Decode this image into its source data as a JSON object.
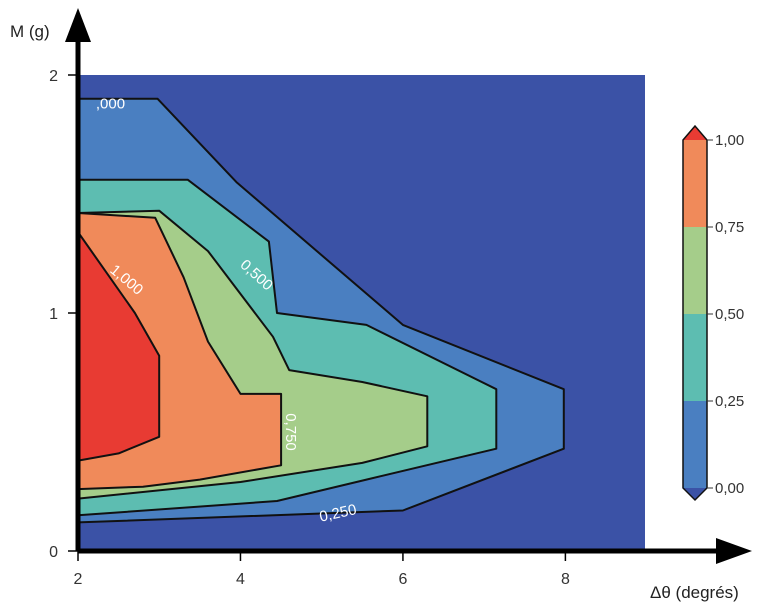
{
  "chart_data": {
    "type": "contour",
    "xlabel": "Δθ (degrés)",
    "ylabel": "M (g)",
    "xlim": [
      2,
      8.98
    ],
    "ylim": [
      0,
      2
    ],
    "x_ticks": [
      "2",
      "4",
      "6",
      "8"
    ],
    "y_ticks": [
      "0",
      "1",
      "2"
    ],
    "colorbar": {
      "range": [
        0,
        1
      ],
      "extend": "both",
      "tick_labels": [
        "0,00",
        "0,25",
        "0,50",
        "0,75",
        "1,00"
      ],
      "bins": [
        {
          "from": 0.0,
          "to": 0.25,
          "color": "#4a7fc1"
        },
        {
          "from": 0.25,
          "to": 0.5,
          "color": "#5dbdb1"
        },
        {
          "from": 0.5,
          "to": 0.75,
          "color": "#a5cd8a"
        },
        {
          "from": 0.75,
          "to": 1.0,
          "color": "#f08a5a"
        }
      ],
      "under_color": "#3b52a6",
      "over_color": "#e83b33"
    },
    "levels": [
      {
        "value": 0.0,
        "label": ",000",
        "fill": "#4a7fc1",
        "polygon": [
          [
            2,
            1.9
          ],
          [
            2.98,
            1.9
          ],
          [
            3.95,
            1.55
          ],
          [
            6.0,
            0.95
          ],
          [
            7.98,
            0.68
          ],
          [
            7.98,
            0.43
          ],
          [
            6.0,
            0.17
          ],
          [
            2,
            0.12
          ]
        ]
      },
      {
        "value": 0.25,
        "label": "0,250",
        "fill": "#5dbdb1",
        "polygon": [
          [
            2,
            1.56
          ],
          [
            3.35,
            1.56
          ],
          [
            4.35,
            1.3
          ],
          [
            4.45,
            1.0
          ],
          [
            5.55,
            0.95
          ],
          [
            7.15,
            0.68
          ],
          [
            7.15,
            0.43
          ],
          [
            5.55,
            0.3
          ],
          [
            4.45,
            0.21
          ],
          [
            2,
            0.15
          ]
        ]
      },
      {
        "value": 0.5,
        "label": "0,500",
        "fill": "#a5cd8a",
        "polygon": [
          [
            2,
            1.42
          ],
          [
            3.0,
            1.43
          ],
          [
            3.6,
            1.26
          ],
          [
            4.4,
            0.9
          ],
          [
            4.6,
            0.76
          ],
          [
            5.5,
            0.71
          ],
          [
            6.3,
            0.65
          ],
          [
            6.3,
            0.44
          ],
          [
            5.5,
            0.37
          ],
          [
            4.0,
            0.29
          ],
          [
            2,
            0.22
          ]
        ]
      },
      {
        "value": 0.75,
        "label": "0,750",
        "fill": "#f08a5a",
        "polygon": [
          [
            2,
            1.42
          ],
          [
            2.95,
            1.4
          ],
          [
            3.3,
            1.15
          ],
          [
            3.6,
            0.88
          ],
          [
            4.0,
            0.66
          ],
          [
            4.5,
            0.66
          ],
          [
            4.5,
            0.36
          ],
          [
            3.5,
            0.3
          ],
          [
            2.8,
            0.27
          ],
          [
            2,
            0.26
          ]
        ]
      },
      {
        "value": 1.0,
        "label": "1,000",
        "fill": "#e83b33",
        "polygon": [
          [
            2,
            1.34
          ],
          [
            2.7,
            1.0
          ],
          [
            3.0,
            0.82
          ],
          [
            3.0,
            0.48
          ],
          [
            2.5,
            0.41
          ],
          [
            2,
            0.38
          ]
        ]
      }
    ]
  }
}
